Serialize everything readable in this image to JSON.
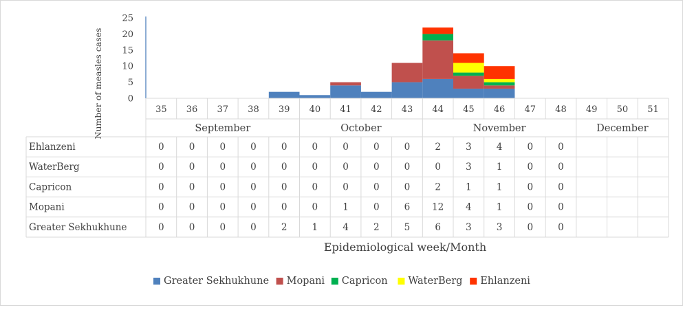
{
  "chart_data": {
    "type": "bar",
    "stacked": true,
    "ylabel": "Number of measles cases",
    "xlabel": "Epidemiological week/Month",
    "ylim": [
      0,
      25
    ],
    "yticks": [
      0,
      5,
      10,
      15,
      20,
      25
    ],
    "categories": [
      "35",
      "36",
      "37",
      "38",
      "39",
      "40",
      "41",
      "42",
      "43",
      "44",
      "45",
      "46",
      "47",
      "48",
      "49",
      "50",
      "51"
    ],
    "months": [
      {
        "label": "September",
        "weeks": [
          "35",
          "36",
          "37",
          "38",
          "39"
        ]
      },
      {
        "label": "October",
        "weeks": [
          "40",
          "41",
          "42",
          "43"
        ]
      },
      {
        "label": "November",
        "weeks": [
          "44",
          "45",
          "46",
          "47",
          "48"
        ]
      },
      {
        "label": "December",
        "weeks": [
          "49",
          "50",
          "51"
        ]
      }
    ],
    "legend_position": "bottom",
    "series": [
      {
        "name": "Greater Sekhukhune",
        "color": "#4f81bd",
        "values": [
          0,
          0,
          0,
          0,
          2,
          1,
          4,
          2,
          5,
          6,
          3,
          3,
          0,
          0,
          null,
          null,
          null
        ]
      },
      {
        "name": "Mopani",
        "color": "#c0504d",
        "values": [
          0,
          0,
          0,
          0,
          0,
          0,
          1,
          0,
          6,
          12,
          4,
          1,
          0,
          0,
          null,
          null,
          null
        ]
      },
      {
        "name": "Capricon",
        "color": "#00b050",
        "values": [
          0,
          0,
          0,
          0,
          0,
          0,
          0,
          0,
          0,
          2,
          1,
          1,
          0,
          0,
          null,
          null,
          null
        ]
      },
      {
        "name": "WaterBerg",
        "color": "#ffff00",
        "values": [
          0,
          0,
          0,
          0,
          0,
          0,
          0,
          0,
          0,
          0,
          3,
          1,
          0,
          0,
          null,
          null,
          null
        ]
      },
      {
        "name": "Ehlanzeni",
        "color": "#ff3300",
        "values": [
          0,
          0,
          0,
          0,
          0,
          0,
          0,
          0,
          0,
          2,
          3,
          4,
          0,
          0,
          null,
          null,
          null
        ]
      }
    ],
    "table_rows": [
      "Ehlanzeni",
      "WaterBerg",
      "Capricon",
      "Mopani",
      "Greater Sekhukhune"
    ]
  }
}
